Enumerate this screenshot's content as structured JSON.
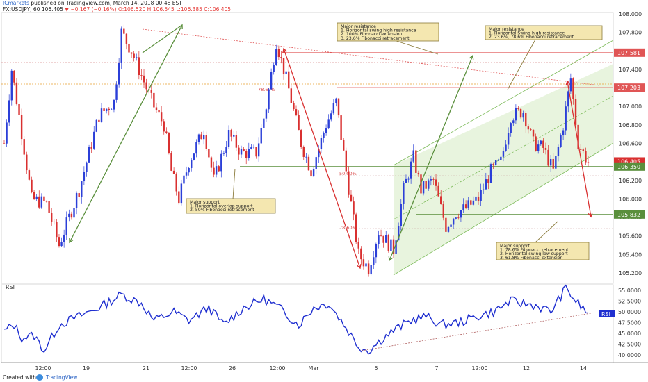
{
  "header": {
    "publisher": "ICmarkets",
    "published_text": " published on TradingView.com, March 14, 2018 00:48 EST",
    "symbol_line": "FX:USDJPY, 60",
    "last": "106.405",
    "change_arrow": "▼",
    "change": "−0.167 (−0.16%)",
    "ohlc": "O:106.520  H:106.545  L:106.385  C:106.405"
  },
  "footer": {
    "created_with": "Created with",
    "brand": "TradingView"
  },
  "colors": {
    "bull": "#2b3fd8",
    "bear": "#d93030",
    "resistance": "#e05555",
    "support": "#5a8f3c",
    "channel": "#7dbb5a",
    "rsi": "#1f2fd0",
    "note_bg": "#f4e7b0",
    "note_border": "#8a7a3a"
  },
  "annotations": [
    {
      "id": "support-left",
      "lines": [
        "Major support",
        "1. Horizontal overlap support",
        "2. 50% Fibonacci retracement"
      ]
    },
    {
      "id": "resistance-top",
      "lines": [
        "Major resistance",
        "1. Horizontal swing high resistance",
        "2. 100% Fibonacci extension",
        "3. 23.6% Fibonacci retracement"
      ]
    },
    {
      "id": "resistance-right",
      "lines": [
        "Major resistance",
        "1. Horizontal Swing high resistance",
        "2. 23.6%, 78.6% Fibonacci retracement"
      ]
    },
    {
      "id": "support-right",
      "lines": [
        "Major support",
        "1. 78.6% Fibonacci retracement",
        "2. Horizontal swing low support",
        "3. 61.8% Fibonacci extension"
      ]
    }
  ],
  "fib_labels": {
    "upper": "78.60%",
    "mid": "50.00%",
    "lower": "78.60%"
  },
  "chart_data": [
    {
      "type": "candlestick",
      "title": "FX:USDJPY, 60",
      "ylim": [
        105.12,
        108.06
      ],
      "y_ticks": [
        "108.000",
        "107.800",
        "107.600",
        "107.400",
        "107.200",
        "107.000",
        "106.800",
        "106.600",
        "106.400",
        "106.200",
        "106.000",
        "105.800",
        "105.600",
        "105.400",
        "105.200"
      ],
      "x_tick_labels": [
        "12:00",
        "19",
        "21",
        "12:00",
        "26",
        "12:00",
        "Mar",
        "5",
        "7",
        "12:00",
        "12",
        "14"
      ],
      "price_labels": [
        {
          "value": 107.581,
          "label": "107.581",
          "color": "#e05555"
        },
        {
          "value": 107.203,
          "label": "107.203",
          "color": "#e05555"
        },
        {
          "value": 106.405,
          "label": "106.405",
          "color": "#d93030"
        },
        {
          "value": 106.35,
          "label": "106.350",
          "color": "#5a8f3c"
        },
        {
          "value": 105.832,
          "label": "105.832",
          "color": "#5a8f3c"
        }
      ],
      "levels": [
        {
          "value": 107.581,
          "style": "resistance"
        },
        {
          "value": 107.203,
          "style": "resistance"
        },
        {
          "value": 106.35,
          "style": "support"
        },
        {
          "value": 105.832,
          "style": "support"
        }
      ],
      "waypoints": [
        [
          0,
          106.6
        ],
        [
          3,
          107.4
        ],
        [
          6,
          106.9
        ],
        [
          11,
          106.0
        ],
        [
          17,
          105.95
        ],
        [
          22,
          105.5
        ],
        [
          30,
          106.1
        ],
        [
          38,
          106.9
        ],
        [
          44,
          107.05
        ],
        [
          47,
          107.8
        ],
        [
          51,
          107.6
        ],
        [
          57,
          107.2
        ],
        [
          60,
          107.0
        ],
        [
          64,
          106.8
        ],
        [
          67,
          106.3
        ],
        [
          70,
          106.0
        ],
        [
          74,
          106.4
        ],
        [
          80,
          106.75
        ],
        [
          84,
          106.2
        ],
        [
          90,
          106.7
        ],
        [
          95,
          106.5
        ],
        [
          101,
          106.5
        ],
        [
          105,
          107.0
        ],
        [
          109,
          107.7
        ],
        [
          113,
          107.3
        ],
        [
          119,
          106.6
        ],
        [
          123,
          106.3
        ],
        [
          129,
          106.8
        ],
        [
          133,
          107.05
        ],
        [
          137,
          106.3
        ],
        [
          142,
          105.4
        ],
        [
          146,
          105.25
        ],
        [
          150,
          105.65
        ],
        [
          156,
          105.45
        ],
        [
          160,
          106.1
        ],
        [
          164,
          106.45
        ],
        [
          167,
          106.1
        ],
        [
          172,
          106.2
        ],
        [
          177,
          105.7
        ],
        [
          181,
          105.85
        ],
        [
          185,
          105.9
        ],
        [
          190,
          106.0
        ],
        [
          195,
          106.3
        ],
        [
          199,
          106.4
        ],
        [
          203,
          106.9
        ],
        [
          208,
          106.95
        ],
        [
          212,
          106.6
        ],
        [
          216,
          106.55
        ],
        [
          220,
          106.3
        ],
        [
          224,
          106.8
        ],
        [
          227,
          107.3
        ],
        [
          230,
          106.6
        ],
        [
          234,
          106.4
        ]
      ],
      "candle_count": 235,
      "fib_markers": [
        106.3,
        107.203,
        105.8
      ]
    },
    {
      "type": "line",
      "title": "RSI",
      "series": [
        {
          "name": "RSI",
          "values_waypoints": [
            [
              0,
              45.5
            ],
            [
              4,
              47
            ],
            [
              7,
              44
            ],
            [
              12,
              44.5
            ],
            [
              16,
              41
            ],
            [
              22,
              47
            ],
            [
              30,
              49
            ],
            [
              38,
              51
            ],
            [
              47,
              54
            ],
            [
              55,
              52
            ],
            [
              60,
              48
            ],
            [
              68,
              50
            ],
            [
              74,
              48
            ],
            [
              82,
              51
            ],
            [
              88,
              47
            ],
            [
              96,
              51
            ],
            [
              104,
              53
            ],
            [
              110,
              51
            ],
            [
              118,
              47
            ],
            [
              124,
              51
            ],
            [
              130,
              52
            ],
            [
              135,
              48
            ],
            [
              142,
              42
            ],
            [
              146,
              41
            ],
            [
              152,
              44
            ],
            [
              157,
              46
            ],
            [
              163,
              48
            ],
            [
              169,
              49
            ],
            [
              175,
              47
            ],
            [
              182,
              47.5
            ],
            [
              190,
              49
            ],
            [
              196,
              50
            ],
            [
              203,
              52.5
            ],
            [
              207,
              52
            ],
            [
              213,
              51.5
            ],
            [
              219,
              50
            ],
            [
              225,
              55.5
            ],
            [
              229,
              52.5
            ],
            [
              234,
              49.5
            ]
          ]
        }
      ],
      "ylim": [
        39.3,
        56.5
      ],
      "y_ticks": [
        "55.0000",
        "52.5000",
        "50.0000",
        "47.5000",
        "45.0000",
        "42.5000",
        "40.0000"
      ],
      "last_label": "RSI"
    }
  ]
}
